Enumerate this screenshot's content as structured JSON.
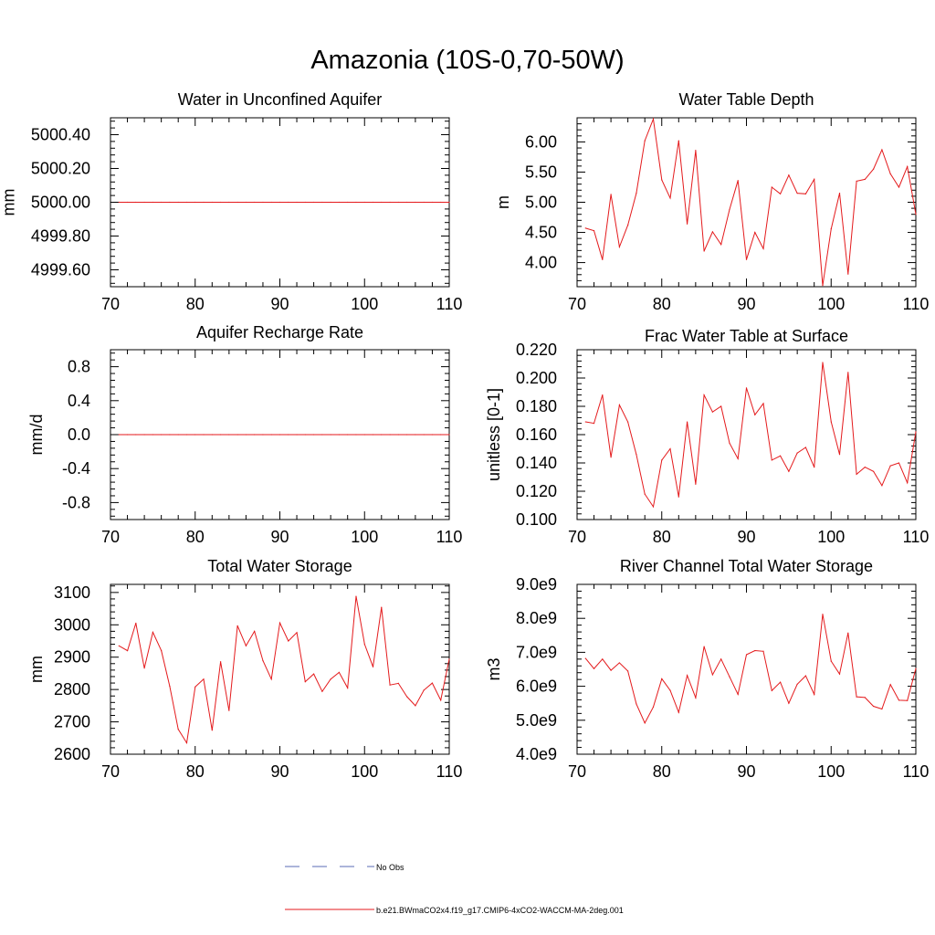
{
  "figure": {
    "title": "Amazonia (10S-0,70-50W)",
    "legend": [
      {
        "label": "No Obs",
        "style": "dashed",
        "color": "#5a6bb5"
      },
      {
        "label": "b.e21.BWmaCO2x4.f19_g17.CMIP6-4xCO2-WACCM-MA-2deg.001",
        "style": "solid",
        "color": "#e41a1c"
      }
    ]
  },
  "chart_data": [
    {
      "type": "line",
      "title": "Water in Unconfined Aquifer",
      "xlabel": "",
      "ylabel": "mm",
      "xlim": [
        70,
        110
      ],
      "ylim": [
        4999.5,
        5000.5
      ],
      "xticks": [
        70,
        80,
        90,
        100,
        110
      ],
      "yticks": [
        4999.6,
        4999.8,
        5000.0,
        5000.2,
        5000.4
      ],
      "ytick_labels": [
        "4999.60",
        "4999.80",
        "5000.00",
        "5000.20",
        "5000.40"
      ],
      "series": [
        {
          "name": "b.e21.BWmaCO2x4.f19_g17.CMIP6-4xCO2-WACCM-MA-2deg.001",
          "x_start": 71,
          "values": [
            5000,
            5000,
            5000,
            5000,
            5000,
            5000,
            5000,
            5000,
            5000,
            5000,
            5000,
            5000,
            5000,
            5000,
            5000,
            5000,
            5000,
            5000,
            5000,
            5000,
            5000,
            5000,
            5000,
            5000,
            5000,
            5000,
            5000,
            5000,
            5000,
            5000,
            5000,
            5000,
            5000,
            5000,
            5000,
            5000,
            5000,
            5000,
            5000,
            5000
          ]
        }
      ]
    },
    {
      "type": "line",
      "title": "Water Table Depth",
      "xlabel": "",
      "ylabel": "m",
      "xlim": [
        70,
        110
      ],
      "ylim": [
        3.6,
        6.4
      ],
      "xticks": [
        70,
        80,
        90,
        100,
        110
      ],
      "yticks": [
        4.0,
        4.5,
        5.0,
        5.5,
        6.0
      ],
      "ytick_labels": [
        "4.00",
        "4.50",
        "5.00",
        "5.50",
        "6.00"
      ],
      "series": [
        {
          "name": "b.e21.BWmaCO2x4.f19_g17.CMIP6-4xCO2-WACCM-MA-2deg.001",
          "x_start": 71,
          "values": [
            4.57,
            4.53,
            4.05,
            5.13,
            4.26,
            4.62,
            5.15,
            6.02,
            6.38,
            5.37,
            5.07,
            6.02,
            4.64,
            5.86,
            4.19,
            4.51,
            4.3,
            4.88,
            5.36,
            4.05,
            4.5,
            4.23,
            5.25,
            5.14,
            5.45,
            5.15,
            5.14,
            5.38,
            3.62,
            4.56,
            5.15,
            3.81,
            5.35,
            5.38,
            5.55,
            5.87,
            5.47,
            5.25,
            5.59,
            4.8
          ]
        }
      ]
    },
    {
      "type": "line",
      "title": "Aquifer Recharge Rate",
      "xlabel": "",
      "ylabel": "mm/d",
      "xlim": [
        70,
        110
      ],
      "ylim": [
        -1.0,
        1.0
      ],
      "xticks": [
        70,
        80,
        90,
        100,
        110
      ],
      "yticks": [
        -0.8,
        -0.4,
        0.0,
        0.4,
        0.8
      ],
      "ytick_labels": [
        "-0.8",
        "-0.4",
        "0.0",
        "0.4",
        "0.8"
      ],
      "series": [
        {
          "name": "b.e21.BWmaCO2x4.f19_g17.CMIP6-4xCO2-WACCM-MA-2deg.001",
          "x_start": 71,
          "values": [
            0,
            0,
            0,
            0,
            0,
            0,
            0,
            0,
            0,
            0,
            0,
            0,
            0,
            0,
            0,
            0,
            0,
            0,
            0,
            0,
            0,
            0,
            0,
            0,
            0,
            0,
            0,
            0,
            0,
            0,
            0,
            0,
            0,
            0,
            0,
            0,
            0,
            0,
            0,
            0
          ]
        }
      ]
    },
    {
      "type": "line",
      "title": "Frac Water Table at Surface",
      "xlabel": "",
      "ylabel": "unitless [0-1]",
      "xlim": [
        70,
        110
      ],
      "ylim": [
        0.1,
        0.22
      ],
      "xticks": [
        70,
        80,
        90,
        100,
        110
      ],
      "yticks": [
        0.1,
        0.12,
        0.14,
        0.16,
        0.18,
        0.2,
        0.22
      ],
      "ytick_labels": [
        "0.100",
        "0.120",
        "0.140",
        "0.160",
        "0.180",
        "0.200",
        "0.220"
      ],
      "series": [
        {
          "name": "b.e21.BWmaCO2x4.f19_g17.CMIP6-4xCO2-WACCM-MA-2deg.001",
          "x_start": 71,
          "values": [
            0.169,
            0.168,
            0.188,
            0.144,
            0.181,
            0.169,
            0.146,
            0.118,
            0.109,
            0.142,
            0.15,
            0.116,
            0.169,
            0.125,
            0.188,
            0.176,
            0.18,
            0.154,
            0.143,
            0.193,
            0.174,
            0.182,
            0.142,
            0.145,
            0.134,
            0.147,
            0.151,
            0.137,
            0.211,
            0.169,
            0.146,
            0.204,
            0.132,
            0.137,
            0.134,
            0.124,
            0.138,
            0.14,
            0.126,
            0.162
          ]
        }
      ]
    },
    {
      "type": "line",
      "title": "Total Water Storage",
      "xlabel": "",
      "ylabel": "mm",
      "xlim": [
        70,
        110
      ],
      "ylim": [
        2600,
        3125
      ],
      "xticks": [
        70,
        80,
        90,
        100,
        110
      ],
      "yticks": [
        2600,
        2700,
        2800,
        2900,
        3000,
        3100
      ],
      "ytick_labels": [
        "2600",
        "2700",
        "2800",
        "2900",
        "3000",
        "3100"
      ],
      "series": [
        {
          "name": "b.e21.BWmaCO2x4.f19_g17.CMIP6-4xCO2-WACCM-MA-2deg.001",
          "x_start": 71,
          "values": [
            2935,
            2920,
            3005,
            2866,
            2977,
            2920,
            2810,
            2677,
            2635,
            2808,
            2832,
            2674,
            2886,
            2735,
            2997,
            2935,
            2980,
            2889,
            2832,
            3006,
            2950,
            2976,
            2824,
            2848,
            2794,
            2832,
            2853,
            2805,
            3088,
            2940,
            2870,
            3054,
            2814,
            2819,
            2778,
            2750,
            2798,
            2820,
            2767,
            2894
          ]
        }
      ]
    },
    {
      "type": "line",
      "title": "River Channel Total Water Storage",
      "xlabel": "",
      "ylabel": "m3",
      "xlim": [
        70,
        110
      ],
      "ylim": [
        4000000000.0,
        9000000000.0
      ],
      "xticks": [
        70,
        80,
        90,
        100,
        110
      ],
      "yticks": [
        4000000000.0,
        5000000000.0,
        6000000000.0,
        7000000000.0,
        8000000000.0,
        9000000000.0
      ],
      "ytick_labels": [
        "4.0e9",
        "5.0e9",
        "6.0e9",
        "7.0e9",
        "8.0e9",
        "9.0e9"
      ],
      "series": [
        {
          "name": "b.e21.BWmaCO2x4.f19_g17.CMIP6-4xCO2-WACCM-MA-2deg.001",
          "x_start": 71,
          "values": [
            6820000000.0,
            6520000000.0,
            6800000000.0,
            6470000000.0,
            6690000000.0,
            6450000000.0,
            5480000000.0,
            4920000000.0,
            5390000000.0,
            6220000000.0,
            5880000000.0,
            5230000000.0,
            6320000000.0,
            5660000000.0,
            7170000000.0,
            6340000000.0,
            6800000000.0,
            6280000000.0,
            5760000000.0,
            6930000000.0,
            7050000000.0,
            7030000000.0,
            5870000000.0,
            6120000000.0,
            5500000000.0,
            6060000000.0,
            6310000000.0,
            5760000000.0,
            8120000000.0,
            6740000000.0,
            6360000000.0,
            7570000000.0,
            5690000000.0,
            5670000000.0,
            5410000000.0,
            5330000000.0,
            6050000000.0,
            5590000000.0,
            5580000000.0,
            6520000000.0
          ]
        }
      ]
    }
  ]
}
